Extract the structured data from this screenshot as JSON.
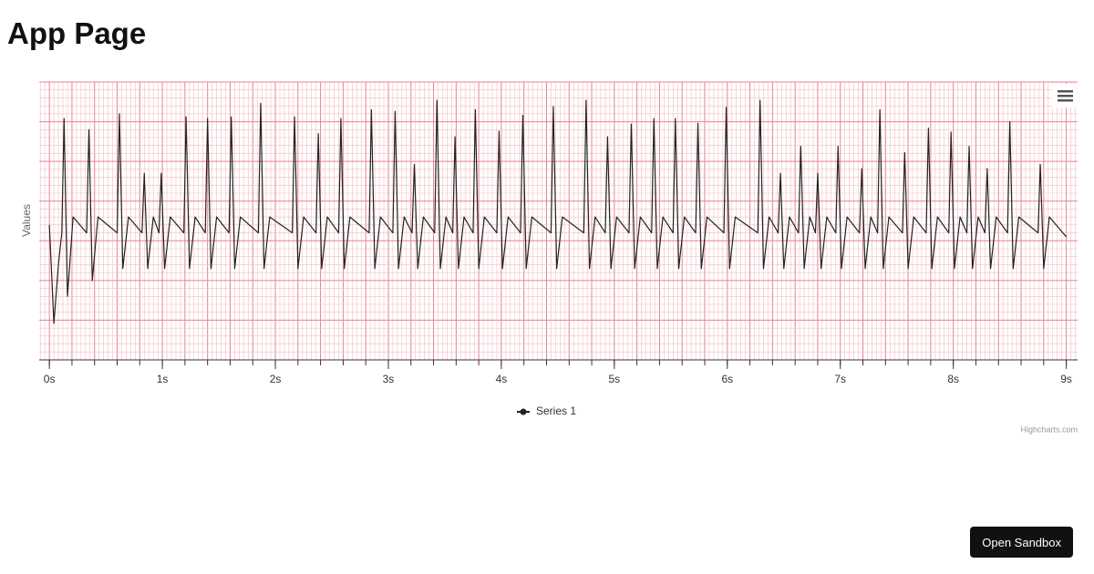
{
  "header": {
    "title": "App Page"
  },
  "chart_data": {
    "type": "line",
    "y_axis_title": "Values",
    "credits": "Highcharts.com",
    "xlim": [
      -0.09,
      9.1
    ],
    "ylim": [
      -1.5,
      2.0
    ],
    "xticks": [
      {
        "value": 0,
        "label": "0s"
      },
      {
        "value": 1,
        "label": "1s"
      },
      {
        "value": 2,
        "label": "2s"
      },
      {
        "value": 3,
        "label": "3s"
      },
      {
        "value": 4,
        "label": "4s"
      },
      {
        "value": 5,
        "label": "5s"
      },
      {
        "value": 6,
        "label": "6s"
      },
      {
        "value": 7,
        "label": "7s"
      },
      {
        "value": 8,
        "label": "8s"
      },
      {
        "value": 9,
        "label": "9s"
      }
    ],
    "grid": {
      "x_major": 0.2,
      "x_minor": 0.04,
      "y_major": 0.5,
      "y_minor": 0.1,
      "major_color": "#e8838e",
      "minor_color": "#f4bcc2"
    },
    "x": [
      0,
      0.04,
      0.08,
      0.11,
      0.13,
      0.16,
      0.21,
      0.33,
      0.35,
      0.38,
      0.43,
      0.6,
      0.62,
      0.65,
      0.7,
      0.82,
      0.84,
      0.87,
      0.92,
      0.97,
      0.99,
      1.02,
      1.07,
      1.19,
      1.21,
      1.24,
      1.29,
      1.38,
      1.4,
      1.43,
      1.48,
      1.59,
      1.61,
      1.64,
      1.69,
      1.85,
      1.87,
      1.9,
      1.95,
      2.15,
      2.17,
      2.2,
      2.25,
      2.36,
      2.38,
      2.41,
      2.46,
      2.56,
      2.58,
      2.61,
      2.66,
      2.83,
      2.85,
      2.88,
      2.93,
      3.04,
      3.06,
      3.09,
      3.14,
      3.21,
      3.23,
      3.26,
      3.31,
      3.41,
      3.43,
      3.46,
      3.51,
      3.57,
      3.59,
      3.62,
      3.67,
      3.75,
      3.77,
      3.8,
      3.85,
      3.96,
      3.98,
      4.01,
      4.06,
      4.17,
      4.19,
      4.22,
      4.27,
      4.44,
      4.46,
      4.49,
      4.54,
      4.73,
      4.75,
      4.78,
      4.83,
      4.92,
      4.94,
      4.97,
      5.02,
      5.13,
      5.15,
      5.18,
      5.23,
      5.33,
      5.35,
      5.38,
      5.43,
      5.52,
      5.54,
      5.57,
      5.62,
      5.72,
      5.74,
      5.77,
      5.82,
      5.97,
      5.99,
      6.02,
      6.07,
      6.27,
      6.29,
      6.32,
      6.37,
      6.45,
      6.47,
      6.5,
      6.55,
      6.63,
      6.65,
      6.68,
      6.73,
      6.78,
      6.8,
      6.83,
      6.88,
      6.96,
      6.98,
      7.01,
      7.06,
      7.17,
      7.19,
      7.22,
      7.27,
      7.33,
      7.35,
      7.38,
      7.43,
      7.55,
      7.57,
      7.6,
      7.65,
      7.76,
      7.78,
      7.81,
      7.86,
      7.96,
      7.98,
      8.01,
      8.06,
      8.12,
      8.14,
      8.17,
      8.22,
      8.28,
      8.3,
      8.33,
      8.38,
      8.48,
      8.5,
      8.53,
      8.58,
      8.75,
      8.77,
      8.8,
      8.85,
      9.0
    ],
    "series": [
      {
        "name": "Series 1",
        "color": "#222222",
        "values": [
          0.2,
          -1.04,
          -0.3,
          0.1,
          1.54,
          -0.7,
          0.3,
          0.1,
          1.4,
          -0.5,
          0.3,
          0.1,
          1.6,
          -0.35,
          0.3,
          0.1,
          0.85,
          -0.35,
          0.3,
          0.1,
          0.85,
          -0.35,
          0.3,
          0.1,
          1.56,
          -0.35,
          0.3,
          0.1,
          1.54,
          -0.35,
          0.3,
          0.1,
          1.56,
          -0.35,
          0.3,
          0.1,
          1.73,
          -0.35,
          0.3,
          0.1,
          1.56,
          -0.35,
          0.3,
          0.1,
          1.35,
          -0.35,
          0.3,
          0.1,
          1.54,
          -0.35,
          0.3,
          0.1,
          1.65,
          -0.35,
          0.3,
          0.1,
          1.63,
          -0.35,
          0.3,
          0.1,
          0.96,
          -0.35,
          0.3,
          0.1,
          1.77,
          -0.35,
          0.3,
          0.1,
          1.31,
          -0.35,
          0.3,
          0.1,
          1.65,
          -0.35,
          0.3,
          0.1,
          1.38,
          -0.35,
          0.3,
          0.1,
          1.58,
          -0.35,
          0.3,
          0.1,
          1.69,
          -0.35,
          0.3,
          0.1,
          1.77,
          -0.35,
          0.3,
          0.1,
          1.31,
          -0.35,
          0.3,
          0.1,
          1.47,
          -0.35,
          0.3,
          0.1,
          1.54,
          -0.35,
          0.3,
          0.1,
          1.54,
          -0.35,
          0.3,
          0.1,
          1.48,
          -0.35,
          0.3,
          0.1,
          1.68,
          -0.35,
          0.3,
          0.1,
          1.77,
          -0.35,
          0.3,
          0.1,
          0.85,
          -0.35,
          0.3,
          0.1,
          1.19,
          -0.35,
          0.3,
          0.1,
          0.85,
          -0.35,
          0.3,
          0.1,
          1.19,
          -0.35,
          0.3,
          0.1,
          0.91,
          -0.35,
          0.3,
          0.1,
          1.65,
          -0.35,
          0.3,
          0.1,
          1.11,
          -0.35,
          0.3,
          0.1,
          1.42,
          -0.35,
          0.3,
          0.1,
          1.37,
          -0.35,
          0.3,
          0.1,
          1.19,
          -0.35,
          0.3,
          0.1,
          0.91,
          -0.35,
          0.3,
          0.1,
          1.5,
          -0.35,
          0.3,
          0.1,
          0.96,
          -0.35,
          0.3,
          0.05
        ]
      }
    ]
  },
  "button": {
    "label": "Open Sandbox"
  }
}
